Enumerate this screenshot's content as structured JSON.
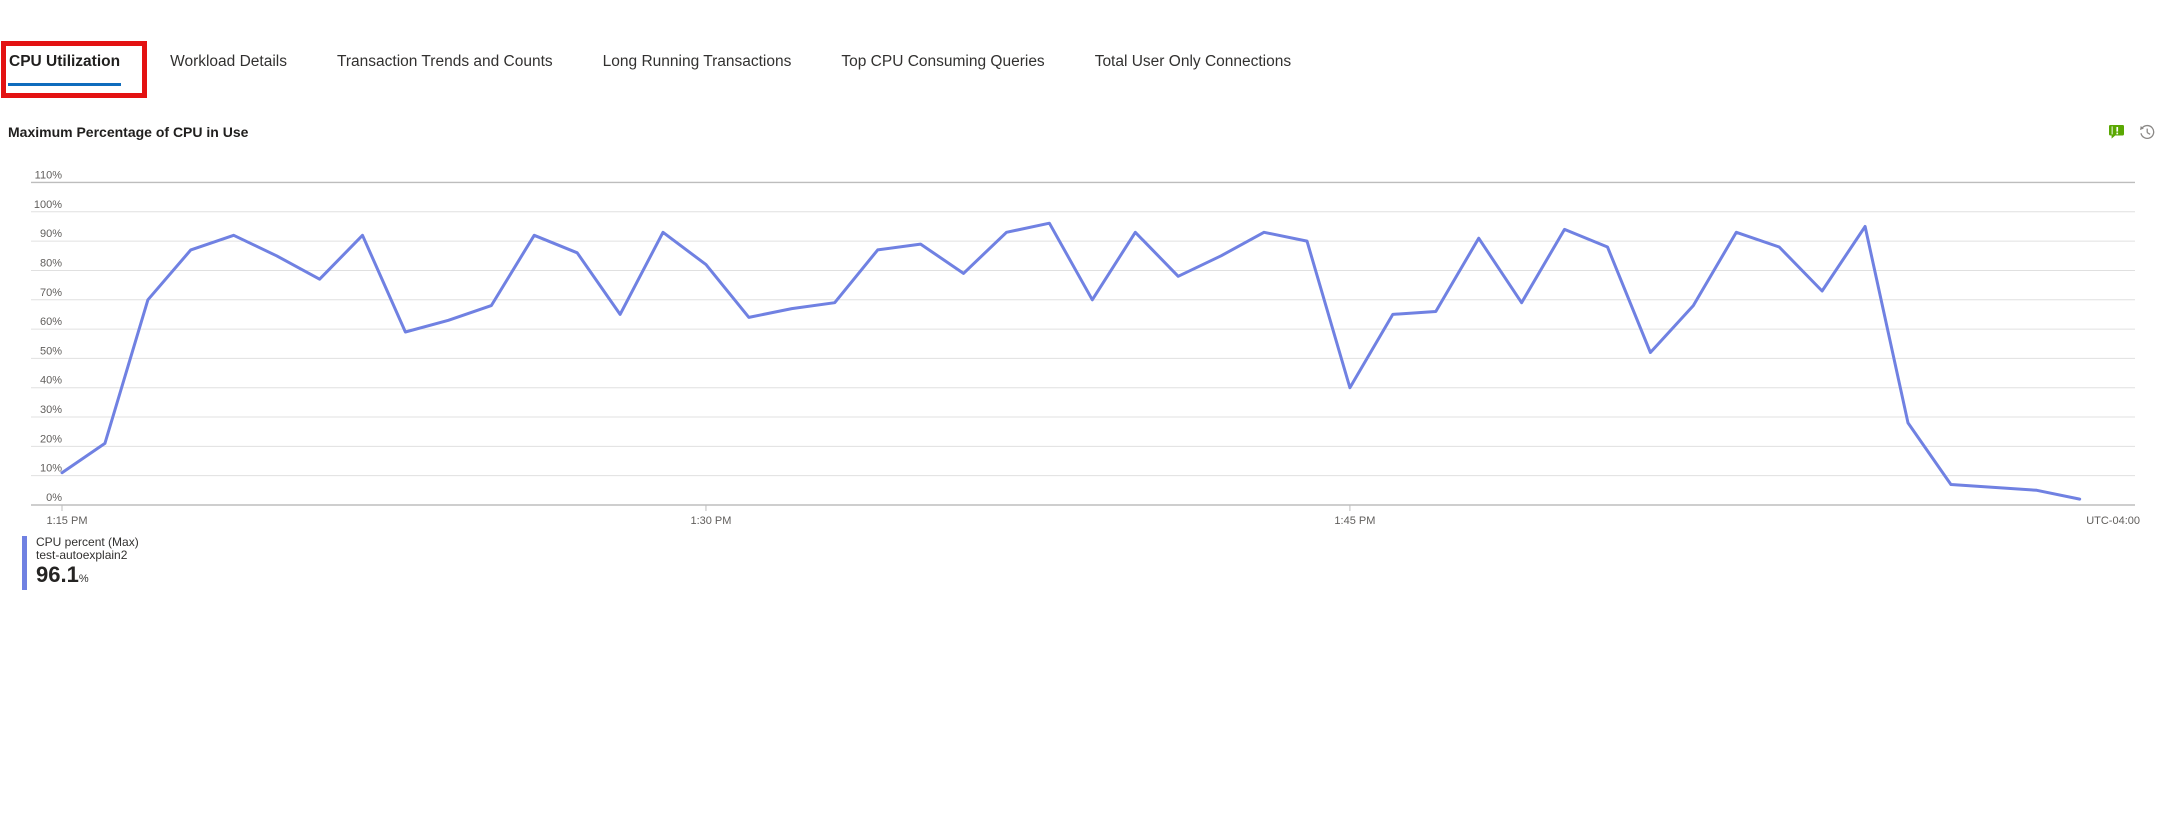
{
  "tabs": {
    "items": [
      {
        "label": "CPU Utilization",
        "active": true,
        "annotated": true
      },
      {
        "label": "Workload Details",
        "active": false
      },
      {
        "label": "Transaction Trends and Counts",
        "active": false
      },
      {
        "label": "Long Running Transactions",
        "active": false
      },
      {
        "label": "Top CPU Consuming Queries",
        "active": false
      },
      {
        "label": "Total User Only Connections",
        "active": false
      }
    ]
  },
  "annotation": {
    "shape": "rectangle",
    "target": "CPU Utilization",
    "color": "#e31212"
  },
  "chart": {
    "title": "Maximum Percentage of CPU in Use",
    "icons": [
      {
        "name": "feedback-icon",
        "color": "#5aa802"
      },
      {
        "name": "history-icon",
        "color": "#8a8886"
      }
    ]
  },
  "legend": {
    "metric": "CPU percent (Max)",
    "resource": "test-autoexplain2",
    "value": "96.1",
    "unit": "%"
  },
  "chart_data": {
    "type": "line",
    "title": "Maximum Percentage of CPU in Use",
    "ylabel": "CPU percent",
    "ylim": [
      0,
      110
    ],
    "y_ticks": [
      0,
      10,
      20,
      30,
      40,
      50,
      60,
      70,
      80,
      90,
      100,
      110
    ],
    "y_tick_suffix": "%",
    "x_ticks": [
      {
        "label": "1:15 PM",
        "minute": 0
      },
      {
        "label": "1:30 PM",
        "minute": 15
      },
      {
        "label": "1:45 PM",
        "minute": 30
      }
    ],
    "x_axis_note": "UTC-04:00",
    "grid": "horizontal",
    "legend_position": "bottom-left",
    "series": [
      {
        "name": "CPU percent (Max)",
        "resource": "test-autoexplain2",
        "color": "#7081e2",
        "max": 96.1,
        "x_unit": "minutes after 1:15 PM",
        "points": [
          [
            0,
            11
          ],
          [
            1,
            21
          ],
          [
            2,
            70
          ],
          [
            3,
            87
          ],
          [
            4,
            92
          ],
          [
            5,
            85
          ],
          [
            6,
            77
          ],
          [
            7,
            92
          ],
          [
            8,
            59
          ],
          [
            9,
            63
          ],
          [
            10,
            68
          ],
          [
            11,
            92
          ],
          [
            12,
            86
          ],
          [
            13,
            65
          ],
          [
            14,
            93
          ],
          [
            15,
            82
          ],
          [
            16,
            64
          ],
          [
            17,
            67
          ],
          [
            18,
            69
          ],
          [
            19,
            87
          ],
          [
            20,
            89
          ],
          [
            21,
            79
          ],
          [
            22,
            93
          ],
          [
            23,
            96.1
          ],
          [
            24,
            70
          ],
          [
            25,
            93
          ],
          [
            26,
            78
          ],
          [
            27,
            85
          ],
          [
            28,
            93
          ],
          [
            29,
            90
          ],
          [
            30,
            40
          ],
          [
            31,
            65
          ],
          [
            32,
            66
          ],
          [
            33,
            91
          ],
          [
            34,
            69
          ],
          [
            35,
            94
          ],
          [
            36,
            88
          ],
          [
            37,
            52
          ],
          [
            38,
            68
          ],
          [
            39,
            93
          ],
          [
            40,
            88
          ],
          [
            41,
            73
          ],
          [
            42,
            95
          ],
          [
            43,
            28
          ],
          [
            44,
            7
          ],
          [
            45,
            6
          ],
          [
            46,
            5
          ],
          [
            47,
            2
          ]
        ]
      }
    ]
  }
}
